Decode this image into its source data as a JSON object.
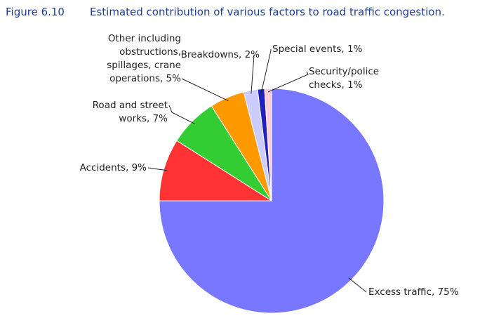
{
  "figure": {
    "number": "Figure 6.10",
    "title": "Estimated contribution of various factors to road traffic congestion."
  },
  "chart_data": {
    "type": "pie",
    "title": "Estimated contribution of various factors to road traffic congestion.",
    "start": "12 o'clock",
    "direction": "clockwise",
    "slices": [
      {
        "name": "Excess traffic",
        "value": 75,
        "color": "#7777ff",
        "label_lines": [
          "Excess traffic, 75%"
        ]
      },
      {
        "name": "Accidents",
        "value": 9,
        "color": "#ff3333",
        "label_lines": [
          "Accidents, 9%"
        ]
      },
      {
        "name": "Road and street works",
        "value": 7,
        "color": "#33cc33",
        "label_lines": [
          "Road and street",
          "works, 7%"
        ]
      },
      {
        "name": "Other including obstructions, spillages, crane operations",
        "value": 5,
        "color": "#ff9900",
        "label_lines": [
          "Other including",
          "obstructions,",
          "spillages, crane",
          "operations, 5%"
        ]
      },
      {
        "name": "Breakdowns",
        "value": 2,
        "color": "#ccccff",
        "label_lines": [
          "Breakdowns, 2%"
        ]
      },
      {
        "name": "Special events",
        "value": 1,
        "color": "#2222bb",
        "label_lines": [
          "Special events, 1%"
        ]
      },
      {
        "name": "Security/police checks",
        "value": 1,
        "color": "#ffccdd",
        "label_lines": [
          "Security/police",
          "checks, 1%"
        ]
      }
    ]
  }
}
